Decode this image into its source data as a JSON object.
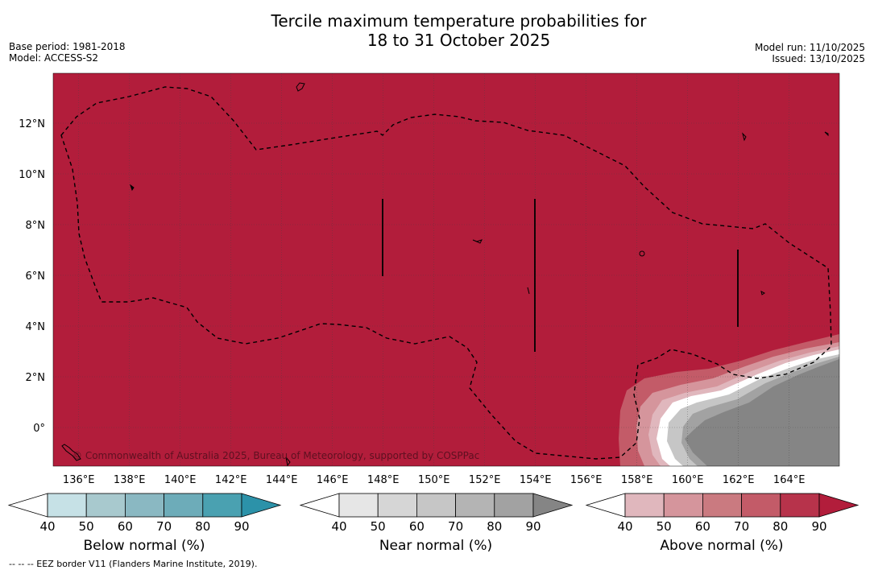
{
  "title": {
    "line1": "Tercile maximum temperature probabilities for",
    "line2": "18 to 31 October 2025"
  },
  "meta": {
    "base_period": "Base period: 1981-2018",
    "model": "Model: ACCESS-S2",
    "model_run": "Model run: 11/10/2025",
    "issued": "Issued: 13/10/2025"
  },
  "map": {
    "lat_labels": [
      "12°N",
      "10°N",
      "8°N",
      "6°N",
      "4°N",
      "2°N",
      "0°"
    ],
    "lon_labels": [
      "136°E",
      "138°E",
      "140°E",
      "142°E",
      "144°E",
      "146°E",
      "148°E",
      "150°E",
      "152°E",
      "154°E",
      "156°E",
      "158°E",
      "160°E",
      "162°E",
      "164°E"
    ],
    "copyright": "© Commonwealth of Australia 2025, Bureau of Meteorology, supported by COSPPac",
    "dominant_category": "Above normal",
    "colors": {
      "above_90": "#b21d3b",
      "near_normal_max": "#858585"
    }
  },
  "colorbars": [
    {
      "label": "Below normal (%)",
      "ticks": [
        "40",
        "50",
        "60",
        "70",
        "80",
        "90"
      ],
      "colors": [
        "#ffffff",
        "#c6e1e6",
        "#a8c9ce",
        "#8ab8c2",
        "#6dacb9",
        "#4aa1b1",
        "#2c92a9"
      ]
    },
    {
      "label": "Near normal (%)",
      "ticks": [
        "40",
        "50",
        "60",
        "70",
        "80",
        "90"
      ],
      "colors": [
        "#ffffff",
        "#e6e6e6",
        "#d6d6d6",
        "#c6c6c6",
        "#b4b4b4",
        "#a2a2a2",
        "#858585"
      ]
    },
    {
      "label": "Above normal (%)",
      "ticks": [
        "40",
        "50",
        "60",
        "70",
        "80",
        "90"
      ],
      "colors": [
        "#ffffff",
        "#e0b7bd",
        "#d5959c",
        "#ca7a80",
        "#c35b68",
        "#b7334b",
        "#b21d3b"
      ]
    }
  ],
  "footnote": "--  --  -- EEZ border V11 (Flanders Marine Institute, 2019)."
}
